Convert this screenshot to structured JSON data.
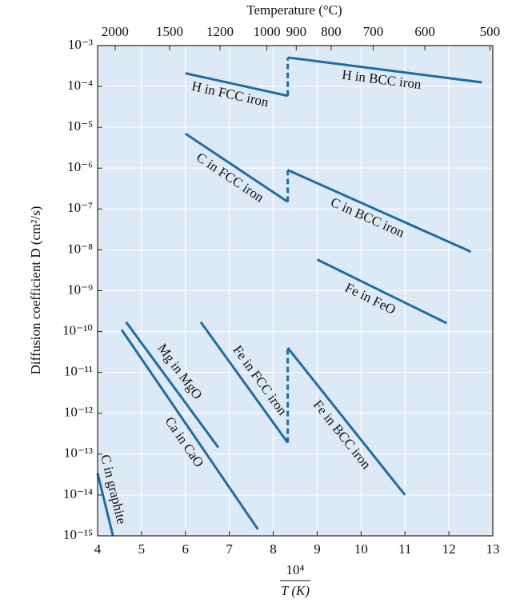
{
  "chart_data": {
    "type": "line",
    "top_axis_label": "Temperature (°C)",
    "y_label": "Diffusion coefficient D (cm²/s)",
    "x_label": {
      "numerator": "10⁴",
      "denominator": "T (K)"
    },
    "log_y": true,
    "grid": true,
    "color": "#1f6da3",
    "xlim": [
      4,
      13
    ],
    "xticks": [
      4,
      5,
      6,
      7,
      8,
      9,
      10,
      11,
      12,
      13
    ],
    "x2ticks": [
      2000,
      1500,
      1200,
      1000,
      900,
      800,
      700,
      600,
      500
    ],
    "ylim": [
      1e-15,
      0.001
    ],
    "yticks": [
      {
        "value": 1e-15,
        "label": "10⁻¹⁵"
      },
      {
        "value": 1e-14,
        "label": "10⁻¹⁴"
      },
      {
        "value": 1e-13,
        "label": "10⁻¹³"
      },
      {
        "value": 1e-12,
        "label": "10⁻¹²"
      },
      {
        "value": 1e-11,
        "label": "10⁻¹¹"
      },
      {
        "value": 1e-10,
        "label": "10⁻¹⁰"
      },
      {
        "value": 1e-09,
        "label": "10⁻⁹"
      },
      {
        "value": 1e-08,
        "label": "10⁻⁸"
      },
      {
        "value": 1e-07,
        "label": "10⁻⁷"
      },
      {
        "value": 1e-06,
        "label": "10⁻⁶"
      },
      {
        "value": 1e-05,
        "label": "10⁻⁵"
      },
      {
        "value": 0.0001,
        "label": "10⁻⁴"
      },
      {
        "value": 0.001,
        "label": "10⁻³"
      }
    ],
    "series": [
      {
        "name": "H in FCC iron",
        "x": [
          6.0,
          8.33
        ],
        "values": [
          0.00021,
          5.9e-05
        ]
      },
      {
        "name": "H in BCC iron",
        "x": [
          8.33,
          12.75
        ],
        "values": [
          0.00051,
          0.000126
        ]
      },
      {
        "name": "C in FCC iron",
        "x": [
          6.0,
          8.33
        ],
        "values": [
          7e-06,
          1.5e-07
        ]
      },
      {
        "name": "C in BCC iron",
        "x": [
          8.33,
          12.5
        ],
        "values": [
          9e-07,
          9e-09
        ]
      },
      {
        "name": "Fe in FeO",
        "x": [
          9.0,
          11.95
        ],
        "values": [
          5.8e-09,
          1.6e-10
        ]
      },
      {
        "name": "Fe in FCC iron",
        "x": [
          6.35,
          8.33
        ],
        "values": [
          1.7e-10,
          1.9e-13
        ]
      },
      {
        "name": "Fe in BCC iron",
        "x": [
          8.33,
          11.0
        ],
        "values": [
          4e-11,
          1e-14
        ]
      },
      {
        "name": "Mg in MgO",
        "x": [
          4.65,
          6.75
        ],
        "values": [
          1.7e-10,
          1.45e-13
        ]
      },
      {
        "name": "Ca in CaO",
        "x": [
          4.55,
          7.65
        ],
        "values": [
          1.1e-10,
          1.45e-15
        ]
      },
      {
        "name": "C in graphite",
        "x": [
          4.0,
          4.35
        ],
        "values": [
          3.4e-14,
          1e-15
        ]
      }
    ]
  }
}
